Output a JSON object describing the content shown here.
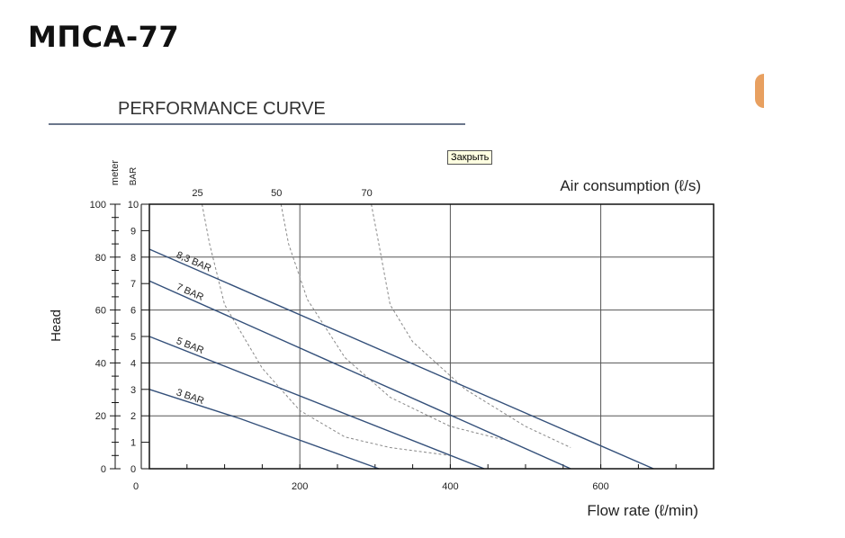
{
  "page": {
    "title": "МПСА-77"
  },
  "tooltip": {
    "text": "Закрыть"
  },
  "chart_data": {
    "type": "line",
    "title": "PERFORMANCE CURVE",
    "xlabel": "Flow rate (ℓ/min)",
    "ylabel": "Head",
    "y_units": {
      "meter": "meter",
      "bar": "BAR"
    },
    "air_label": "Air consumption (ℓ/s)",
    "xlim": [
      0,
      750
    ],
    "ylim_meter": [
      0,
      100
    ],
    "ylim_bar": [
      0,
      10
    ],
    "x_ticks": [
      "0",
      "200",
      "400",
      "600"
    ],
    "y_ticks_meter": [
      "0",
      "20",
      "40",
      "60",
      "80",
      "100"
    ],
    "y_ticks_bar": [
      "0",
      "1",
      "2",
      "3",
      "4",
      "5",
      "6",
      "7",
      "8",
      "9",
      "10"
    ],
    "grid": true,
    "series": [
      {
        "name": "8,3 BAR",
        "x": [
          0,
          670
        ],
        "y": [
          83,
          0
        ]
      },
      {
        "name": "7 BAR",
        "x": [
          0,
          560
        ],
        "y": [
          71,
          0
        ]
      },
      {
        "name": "5 BAR",
        "x": [
          0,
          445
        ],
        "y": [
          50,
          0
        ]
      },
      {
        "name": "3 BAR",
        "x": [
          0,
          120,
          305
        ],
        "y": [
          30,
          19,
          0
        ]
      }
    ],
    "air_consumption": [
      {
        "label": "25",
        "x": [
          70,
          80,
          100,
          150,
          200,
          260,
          320,
          400
        ],
        "y": [
          100,
          85,
          62,
          38,
          22,
          12,
          8,
          5
        ]
      },
      {
        "label": "50",
        "x": [
          175,
          185,
          210,
          260,
          320,
          400,
          470
        ],
        "y": [
          100,
          85,
          64,
          42,
          27,
          16,
          11
        ]
      },
      {
        "label": "70",
        "x": [
          295,
          305,
          320,
          350,
          420,
          500,
          560
        ],
        "y": [
          100,
          85,
          62,
          48,
          30,
          16,
          8
        ]
      }
    ]
  }
}
